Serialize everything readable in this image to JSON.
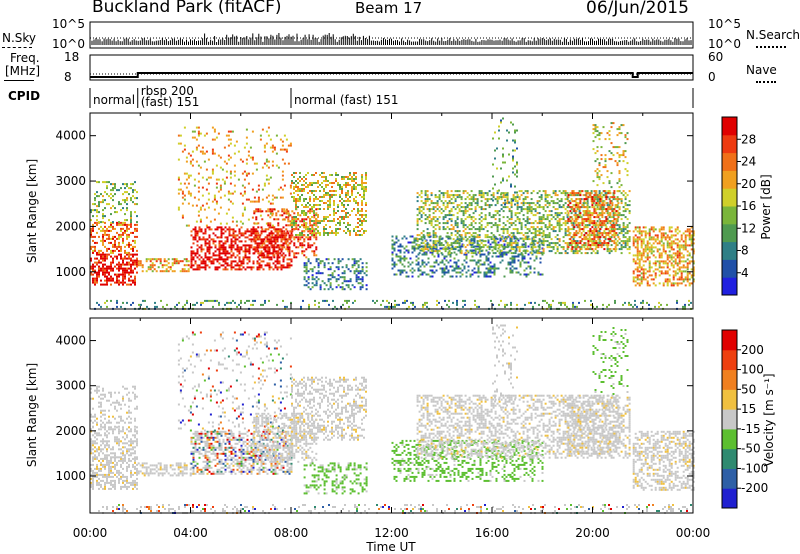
{
  "header": {
    "station": "Buckland Park (fitACF)",
    "beam": "Beam 17",
    "date": "06/Jun/2015"
  },
  "strips": {
    "nsky_label": "N.Sky",
    "nsky_ticks": [
      "10^5",
      "10^0"
    ],
    "nsearch_label": "N.Search",
    "nsearch_ticks": [
      "10^5",
      "10^0"
    ],
    "freq_label": "Freq.",
    "freq_unit": "[MHz]",
    "freq_ticks": [
      "18",
      "8"
    ],
    "nave_label": "Nave",
    "nave_ticks": [
      "60",
      "0"
    ],
    "cpid_label": "CPID"
  },
  "cpid_segments": [
    {
      "label": "normal",
      "start_hour": 0.0,
      "end_hour": 1.9
    },
    {
      "label": "rbsp 200",
      "label2": "(fast) 151",
      "start_hour": 1.9,
      "end_hour": 8.0
    },
    {
      "label": "normal (fast)  151",
      "start_hour": 8.0,
      "end_hour": 24.0
    }
  ],
  "chart_data": [
    {
      "type": "heatmap",
      "name": "power",
      "ylabel": "Slant Range [km]",
      "yticks": [
        1000,
        2000,
        3000,
        4000
      ],
      "ylim": [
        180,
        4500
      ],
      "xlim": [
        0,
        24
      ],
      "colorbar": {
        "label": "Power [dB]",
        "ticks": [
          "28",
          "24",
          "20",
          "16",
          "12",
          "8",
          "4"
        ],
        "colors": [
          "#2020e0",
          "#2050a8",
          "#2f7f86",
          "#4f9a50",
          "#7ab53a",
          "#cfcf2a",
          "#f0a020",
          "#f07018",
          "#ee3a10",
          "#e00000"
        ]
      }
    },
    {
      "type": "heatmap",
      "name": "velocity",
      "ylabel": "Slant Range [km]",
      "xlabel": "Time UT",
      "yticks": [
        1000,
        2000,
        3000,
        4000
      ],
      "ylim": [
        180,
        4500
      ],
      "xlim": [
        0,
        24
      ],
      "xticks": [
        "00:00",
        "04:00",
        "08:00",
        "12:00",
        "16:00",
        "20:00",
        "00:00"
      ],
      "colorbar": {
        "label": "Velocity [m s⁻¹]",
        "ticks": [
          "200",
          "100",
          "50",
          "15",
          "-15",
          "-50",
          "-100",
          "-200"
        ],
        "colors": [
          "#2020d0",
          "#2e5fa6",
          "#2f8a70",
          "#5cbf30",
          "#c8c8c8",
          "#f0c040",
          "#f08020",
          "#ee4010",
          "#e00000"
        ]
      }
    }
  ]
}
